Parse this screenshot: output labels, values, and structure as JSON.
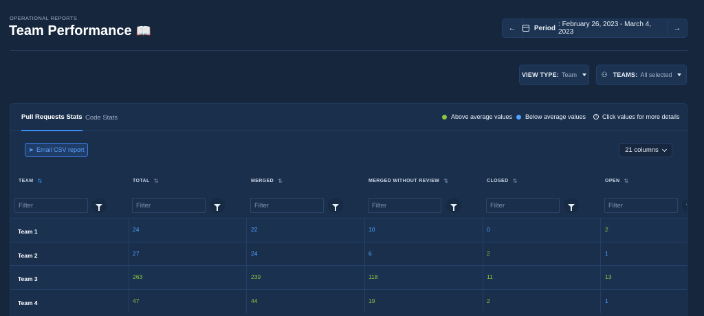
{
  "header": {
    "eyebrow": "OPERATIONAL REPORTS",
    "title": "Team Performance",
    "title_emoji": "📖",
    "period_label": "Period",
    "period_value": ": February 26, 2023 - March 4, 2023",
    "prev_glyph": "←",
    "next_glyph": "→"
  },
  "controls": {
    "view_type_label": "VIEW TYPE:",
    "view_type_value": "Team",
    "teams_label": "TEAMS:",
    "teams_value": "All selected"
  },
  "tabs": [
    {
      "label": "Pull Requests Stats",
      "active": true
    },
    {
      "label": "Code Stats",
      "active": false
    }
  ],
  "legend": {
    "above": "Above average values",
    "below": "Below average values",
    "hint": "Click values for more details",
    "above_color": "#8cc63f",
    "below_color": "#4da3ff"
  },
  "toolbar": {
    "email_label": "Email CSV report",
    "columns_label": "21 columns"
  },
  "table": {
    "filter_placeholder": "Filter",
    "columns": [
      "TEAM",
      "TOTAL",
      "MERGED",
      "MERGED WITHOUT REVIEW",
      "CLOSED",
      "OPEN"
    ],
    "rows": [
      {
        "team": "Team 1",
        "values": [
          "24",
          "22",
          "10",
          "0",
          "2"
        ],
        "status": [
          "below",
          "below",
          "below",
          "below",
          "above"
        ]
      },
      {
        "team": "Team 2",
        "values": [
          "27",
          "24",
          "6",
          "2",
          "1"
        ],
        "status": [
          "below",
          "below",
          "below",
          "above",
          "below"
        ]
      },
      {
        "team": "Team 3",
        "values": [
          "263",
          "239",
          "118",
          "11",
          "13"
        ],
        "status": [
          "above",
          "above",
          "above",
          "above",
          "above"
        ]
      },
      {
        "team": "Team 4",
        "values": [
          "47",
          "44",
          "19",
          "2",
          "1"
        ],
        "status": [
          "above",
          "above",
          "above",
          "above",
          "below"
        ]
      }
    ]
  }
}
